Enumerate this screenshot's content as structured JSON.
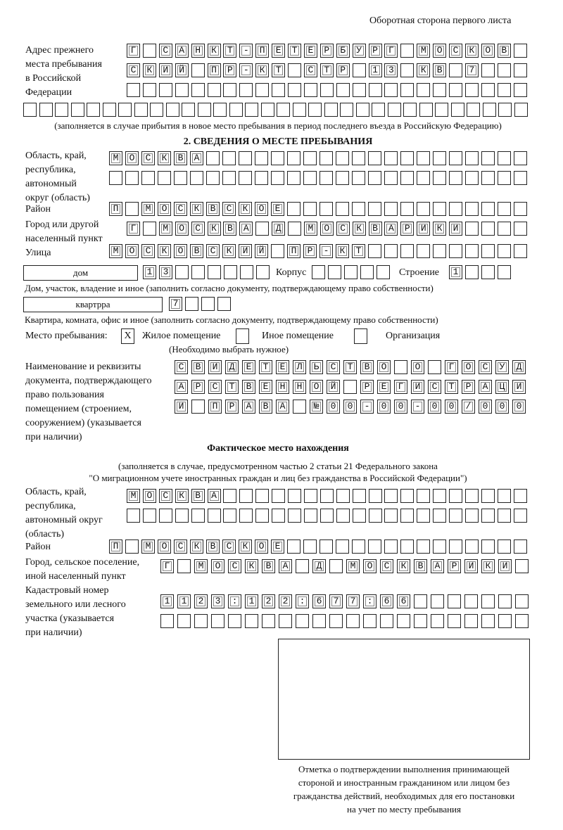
{
  "page_header": "Оборотная сторона первого листа",
  "previous_address": {
    "label": [
      "Адрес прежнего",
      "места пребывания",
      "в Российской",
      "Федерации"
    ],
    "rows": [
      "Г САНКТ-ПЕТЕРБУРГ МОСКОВ",
      "СКИЙ ПР-КТ СТР 13 КВ 7",
      "",
      ""
    ],
    "note": "(заполняется в случае прибытия в новое место пребывания в период последнего въезда в Российскую Федерацию)"
  },
  "section2": {
    "title": "2. СВЕДЕНИЯ О МЕСТЕ ПРЕБЫВАНИЯ",
    "region_label": [
      "Область, край,",
      "республика,",
      "автономный",
      "округ (область)"
    ],
    "region_rows": [
      "МОСКВА",
      ""
    ],
    "district_label": "Район",
    "district": "П МОСКВСКОЕ",
    "city_label": [
      "Город или другой",
      "населенный пункт"
    ],
    "city": "Г МОСКВА Д МОСКВАРИКИ",
    "street_label": "Улица",
    "street": "МОСКОВСКИЙ ПР-КТ",
    "house_type": "дом",
    "house": "13",
    "korpus_label": "Корпус",
    "korpus": "",
    "building_label": "Строение",
    "building": "1",
    "house_note": "Дом, участок, владение и иное (заполнить согласно документу, подтверждающему право собственности)",
    "flat_type": "квартрра",
    "flat": "7",
    "flat_note": "Квартира, комната, офис и иное (заполнить согласно документу, подтверждающему право собственности)",
    "stay_place_label": "Место пребывания:",
    "options": [
      {
        "label": "Жилое помещение",
        "mark": "X"
      },
      {
        "label": "Иное помещение",
        "mark": ""
      },
      {
        "label": "Организация",
        "mark": ""
      }
    ],
    "options_note": "(Необходимо выбрать нужное)",
    "doc_label": [
      "Наименование и реквизиты",
      "документа, подтверждающего",
      "право пользования",
      "помещением (строением,",
      "сооружением) (указывается",
      "при наличии)"
    ],
    "doc_rows": [
      "СВИДЕТЕЛЬСТВО О ГОСУД",
      "АРСТВЕННОЙ РЕГИСТРАЦИ",
      "И ПРАВА №00-00-00/000"
    ]
  },
  "actual": {
    "title": "Фактическое место нахождения",
    "note1": "(заполняется в случае, предусмотренном частью 2 статьи 21 Федерального закона",
    "note2": "\"О миграционном учете иностранных граждан и лиц без гражданства в Российской Федерации\")",
    "region_label": [
      "Область, край,",
      "республика,",
      "автономный округ",
      "(область)"
    ],
    "region_rows": [
      "МОСКВА",
      ""
    ],
    "district_label": "Район",
    "district": "П МОСКВСКОЕ",
    "city_label": [
      "Город, сельское поселение,",
      "иной населенный пункт"
    ],
    "city": "Г МОСКВА Д МОСКВАРИКИ",
    "cadastre_label": [
      "Кадастровый номер",
      "земельного или лесного",
      "участка (указывается",
      "при наличии)"
    ],
    "cadastre_rows": [
      "1123:122:677:66",
      ""
    ]
  },
  "stamp_caption": [
    "Отметка о подтверждении выполнения принимающей",
    "стороной и иностранным гражданином или лицом без",
    "гражданства действий, необходимых для его постановки",
    "на учет по месту пребывания"
  ]
}
